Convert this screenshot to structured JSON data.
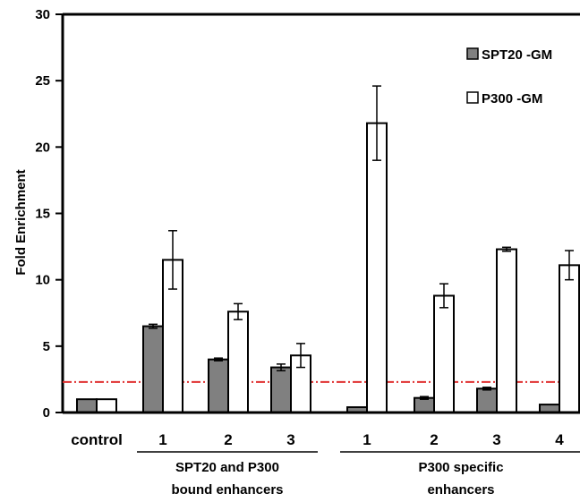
{
  "chart_data": {
    "type": "bar",
    "ylabel": "Fold Enrichment",
    "ylim": [
      0,
      30
    ],
    "yticks": [
      "0",
      "5",
      "10",
      "15",
      "20",
      "25",
      "30"
    ],
    "categories": [
      "control",
      "1",
      "2",
      "3",
      "1",
      "2",
      "3",
      "4"
    ],
    "groups": [
      {
        "label_line1": "SPT20 and P300",
        "label_line2": "bound enhancers",
        "categories": [
          "1",
          "2",
          "3"
        ]
      },
      {
        "label_line1": "P300 specific",
        "label_line2": "enhancers",
        "categories": [
          "1",
          "2",
          "3",
          "4"
        ]
      }
    ],
    "series": [
      {
        "name": "SPT20 -GM",
        "color": "#808080",
        "values": [
          1.0,
          6.5,
          4.0,
          3.4,
          0.4,
          1.1,
          1.8,
          0.6
        ],
        "errors": [
          0,
          0.15,
          0.1,
          0.25,
          0,
          0.1,
          0.1,
          0
        ]
      },
      {
        "name": "P300 -GM",
        "color": "#ffffff",
        "values": [
          1.0,
          11.5,
          7.6,
          4.3,
          21.8,
          8.8,
          12.3,
          11.1
        ],
        "errors": [
          0,
          2.2,
          0.6,
          0.9,
          2.8,
          0.9,
          0.15,
          1.1
        ]
      }
    ],
    "threshold": {
      "value": 2.3,
      "color": "#e03030",
      "style": "dash-dot"
    },
    "legend_position": "top-right",
    "grid": false
  }
}
